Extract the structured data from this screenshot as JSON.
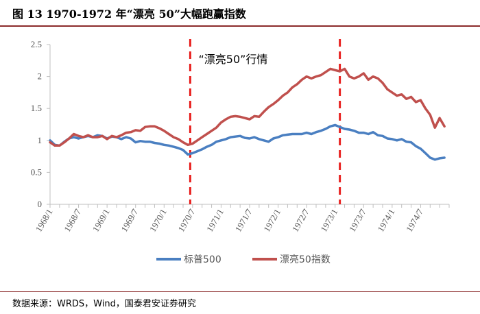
{
  "title": "图 13 1970-1972 年“漂亮 50”大幅跑赢指数",
  "source": "数据来源：WRDS，Wind，国泰君安证券研究",
  "chart_data": {
    "type": "line",
    "y_ticks": [
      "0",
      "0.5",
      "1",
      "1.5",
      "2",
      "2.5"
    ],
    "ylim": [
      0,
      2.5
    ],
    "x_tick_labels": [
      "1968/1",
      "1968/7",
      "1969/1",
      "1969/7",
      "1970/1",
      "1970/7",
      "1971/1",
      "1971/7",
      "1972/1",
      "1972/7",
      "1973/1",
      "1973/7",
      "1974/1",
      "1974/7"
    ],
    "x_months": [
      0,
      6,
      12,
      18,
      24,
      30,
      36,
      42,
      48,
      54,
      60,
      66,
      72,
      78
    ],
    "x_range": [
      0,
      84
    ],
    "annotation": "“漂亮50”行情",
    "vlines": [
      29.5,
      61
    ],
    "grid": false,
    "legend_position": "bottom",
    "colors": {
      "sp500": "#4a7fc1",
      "nifty50": "#c0504d",
      "vline": "#e8201f"
    },
    "series": [
      {
        "name": "标普500",
        "key": "sp500",
        "x": [
          0,
          1,
          2,
          3,
          4,
          5,
          6,
          7,
          8,
          9,
          10,
          11,
          12,
          13,
          14,
          15,
          16,
          17,
          18,
          19,
          20,
          21,
          22,
          23,
          24,
          25,
          26,
          27,
          28,
          29,
          30,
          31,
          32,
          33,
          34,
          35,
          36,
          37,
          38,
          39,
          40,
          41,
          42,
          43,
          44,
          45,
          46,
          47,
          48,
          49,
          50,
          51,
          52,
          53,
          54,
          55,
          56,
          57,
          58,
          59,
          60,
          61,
          62,
          63,
          64,
          65,
          66,
          67,
          68,
          69,
          70,
          71,
          72,
          73,
          74,
          75,
          76,
          77,
          78,
          79,
          80,
          81,
          82,
          83
        ],
        "values": [
          1.0,
          0.93,
          0.92,
          0.98,
          1.03,
          1.05,
          1.03,
          1.05,
          1.07,
          1.05,
          1.08,
          1.07,
          1.03,
          1.06,
          1.05,
          1.02,
          1.05,
          1.03,
          0.97,
          0.99,
          0.98,
          0.98,
          0.96,
          0.95,
          0.93,
          0.92,
          0.9,
          0.88,
          0.85,
          0.78,
          0.8,
          0.83,
          0.86,
          0.9,
          0.93,
          0.98,
          1.0,
          1.02,
          1.05,
          1.06,
          1.07,
          1.04,
          1.03,
          1.05,
          1.02,
          1.0,
          0.98,
          1.03,
          1.05,
          1.08,
          1.09,
          1.1,
          1.1,
          1.1,
          1.12,
          1.1,
          1.13,
          1.15,
          1.18,
          1.22,
          1.24,
          1.21,
          1.18,
          1.17,
          1.15,
          1.12,
          1.12,
          1.1,
          1.13,
          1.08,
          1.07,
          1.03,
          1.02,
          1.0,
          1.02,
          0.98,
          0.97,
          0.91,
          0.87,
          0.8,
          0.73,
          0.7,
          0.72,
          0.73
        ]
      },
      {
        "name": "漂亮50指数",
        "key": "nifty50",
        "x": [
          0,
          1,
          2,
          3,
          4,
          5,
          6,
          7,
          8,
          9,
          10,
          11,
          12,
          13,
          14,
          15,
          16,
          17,
          18,
          19,
          20,
          21,
          22,
          23,
          24,
          25,
          26,
          27,
          28,
          29,
          30,
          31,
          32,
          33,
          34,
          35,
          36,
          37,
          38,
          39,
          40,
          41,
          42,
          43,
          44,
          45,
          46,
          47,
          48,
          49,
          50,
          51,
          52,
          53,
          54,
          55,
          56,
          57,
          58,
          59,
          60,
          61,
          62,
          63,
          64,
          65,
          66,
          67,
          68,
          69,
          70,
          71,
          72,
          73,
          74,
          75,
          76,
          77,
          78,
          79,
          80,
          81,
          82,
          83
        ],
        "values": [
          0.97,
          0.92,
          0.92,
          0.97,
          1.03,
          1.1,
          1.07,
          1.05,
          1.08,
          1.05,
          1.05,
          1.07,
          1.02,
          1.07,
          1.05,
          1.08,
          1.12,
          1.13,
          1.16,
          1.15,
          1.21,
          1.22,
          1.22,
          1.19,
          1.15,
          1.1,
          1.05,
          1.02,
          0.97,
          0.93,
          0.95,
          1.0,
          1.05,
          1.1,
          1.15,
          1.2,
          1.28,
          1.33,
          1.37,
          1.38,
          1.37,
          1.35,
          1.33,
          1.38,
          1.37,
          1.45,
          1.52,
          1.57,
          1.63,
          1.7,
          1.75,
          1.83,
          1.88,
          1.95,
          2.0,
          1.97,
          2.0,
          2.02,
          2.07,
          2.12,
          2.1,
          2.08,
          2.12,
          2.0,
          1.97,
          2.0,
          2.05,
          1.95,
          2.0,
          1.97,
          1.9,
          1.8,
          1.75,
          1.7,
          1.72,
          1.65,
          1.68,
          1.6,
          1.63,
          1.5,
          1.4,
          1.2,
          1.35,
          1.22
        ]
      }
    ]
  }
}
